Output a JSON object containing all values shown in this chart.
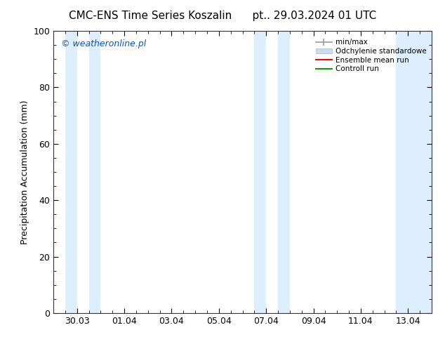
{
  "title_left": "CMC-ENS Time Series Koszalin",
  "title_right": "pt.. 29.03.2024 01 UTC",
  "ylabel": "Precipitation Accumulation (mm)",
  "ylim": [
    0,
    100
  ],
  "yticks": [
    0,
    20,
    40,
    60,
    80,
    100
  ],
  "background_color": "#ffffff",
  "plot_bg_color": "#ffffff",
  "watermark": "© weatheronline.pl",
  "watermark_color": "#0055cc",
  "shade_color": "#ddeeff",
  "shade_bands": [
    [
      0.5,
      1.0
    ],
    [
      1.5,
      2.0
    ],
    [
      8.5,
      9.0
    ],
    [
      9.5,
      10.0
    ],
    [
      14.5,
      16.0
    ]
  ],
  "x_tick_pos": [
    1,
    3,
    5,
    7,
    9,
    11,
    13,
    15
  ],
  "x_tick_labels": [
    "30.03",
    "01.04",
    "03.04",
    "05.04",
    "07.04",
    "09.04",
    "11.04",
    "13.04"
  ],
  "xlim": [
    0,
    16
  ],
  "legend_labels": [
    "min/max",
    "Odchylenie standardowe",
    "Ensemble mean run",
    "Controll run"
  ],
  "legend_colors_line": [
    "#999999",
    "#c8ddf0",
    "#ff0000",
    "#00aa00"
  ],
  "title_fontsize": 11,
  "axis_fontsize": 9,
  "tick_fontsize": 9,
  "watermark_fontsize": 9
}
